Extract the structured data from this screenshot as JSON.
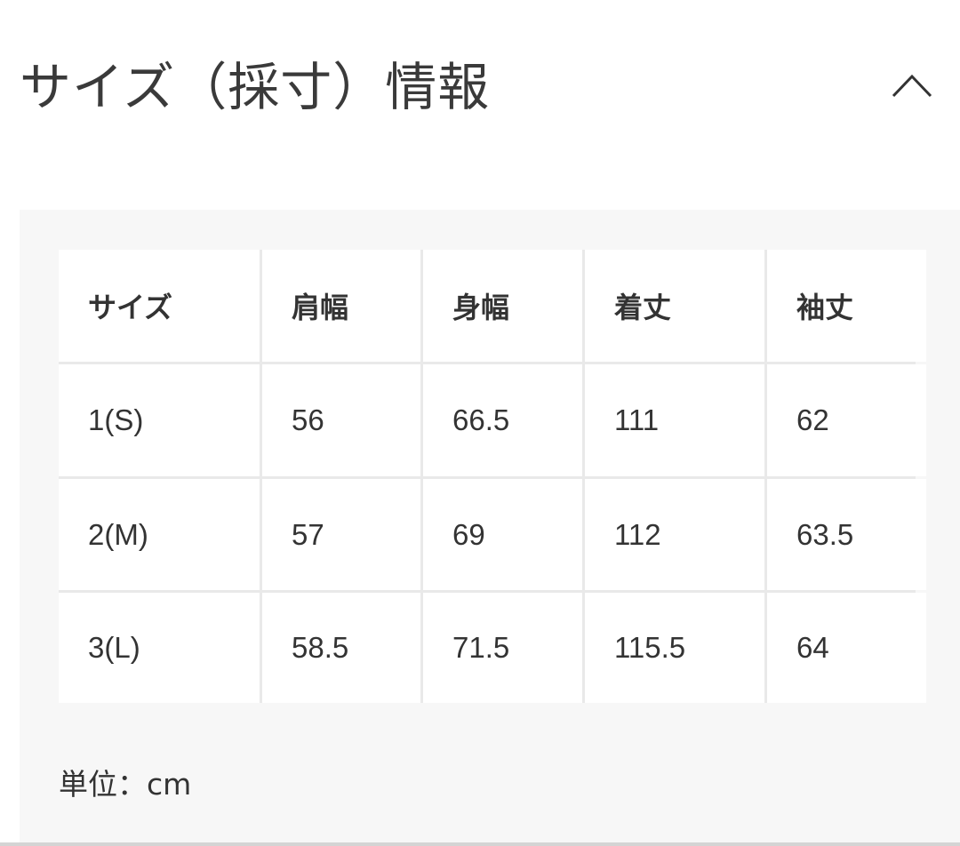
{
  "section": {
    "title": "サイズ（採寸）情報",
    "toggle_icon": "chevron-up-icon"
  },
  "table": {
    "headers": [
      "サイズ",
      "肩幅",
      "身幅",
      "着丈",
      "袖丈"
    ],
    "rows": [
      [
        "1(S)",
        "56",
        "66.5",
        "111",
        "62"
      ],
      [
        "2(M)",
        "57",
        "69",
        "112",
        "63.5"
      ],
      [
        "3(L)",
        "58.5",
        "71.5",
        "115.5",
        "64"
      ]
    ]
  },
  "unit_label": "単位：cm"
}
